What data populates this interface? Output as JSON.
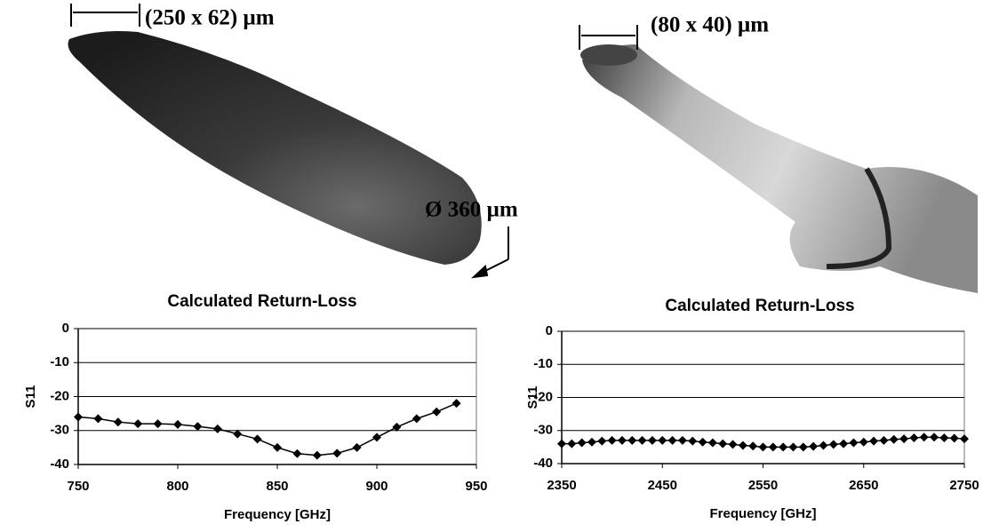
{
  "annotations": [
    "(250 x 62) µm",
    "Ø 360 µm",
    "(80 x 40) µm"
  ],
  "chart_data": [
    {
      "type": "line",
      "title": "Calculated Return-Loss",
      "x_label": "Frequency [GHz]",
      "y_label": "S11",
      "x": [
        750,
        760,
        770,
        780,
        790,
        800,
        810,
        820,
        830,
        840,
        850,
        860,
        870,
        880,
        890,
        900,
        910,
        920,
        930,
        940
      ],
      "series": [
        {
          "color": "#000000",
          "values": [
            -26,
            -26.5,
            -27.5,
            -28,
            -28,
            -28.2,
            -28.8,
            -29.5,
            -31,
            -32.5,
            -35,
            -36.8,
            -37.3,
            -36.7,
            -35,
            -32,
            -29,
            -26.5,
            -24.5,
            -22
          ]
        }
      ],
      "xlim": [
        750,
        950
      ],
      "xticks": [
        750,
        800,
        850,
        900,
        950
      ],
      "ylim": [
        -40,
        0
      ],
      "yticks": [
        0,
        -10,
        -20,
        -30,
        -40
      ],
      "grid": true
    },
    {
      "type": "line",
      "title": "Calculated Return-Loss",
      "x_label": "Frequency [GHz]",
      "y_label": "S11",
      "x": [
        2350,
        2360,
        2370,
        2380,
        2390,
        2400,
        2410,
        2420,
        2430,
        2440,
        2450,
        2460,
        2470,
        2480,
        2490,
        2500,
        2510,
        2520,
        2530,
        2540,
        2550,
        2560,
        2570,
        2580,
        2590,
        2600,
        2610,
        2620,
        2630,
        2640,
        2650,
        2660,
        2670,
        2680,
        2690,
        2700,
        2710,
        2720,
        2730,
        2740,
        2750
      ],
      "series": [
        {
          "color": "#000000",
          "values": [
            -34,
            -34,
            -33.7,
            -33.5,
            -33.2,
            -33,
            -33,
            -33,
            -33,
            -33,
            -33,
            -33,
            -33,
            -33.2,
            -33.5,
            -33.7,
            -34,
            -34.2,
            -34.5,
            -34.7,
            -35,
            -35,
            -35,
            -35,
            -35,
            -34.8,
            -34.5,
            -34.2,
            -34,
            -33.7,
            -33.5,
            -33.2,
            -33,
            -32.7,
            -32.5,
            -32.2,
            -32,
            -32,
            -32.2,
            -32.3,
            -32.5
          ]
        }
      ],
      "xlim": [
        2350,
        2750
      ],
      "xticks": [
        2350,
        2450,
        2550,
        2650,
        2750
      ],
      "ylim": [
        -40,
        0
      ],
      "yticks": [
        0,
        -10,
        -20,
        -30,
        -40
      ],
      "grid": true
    }
  ]
}
